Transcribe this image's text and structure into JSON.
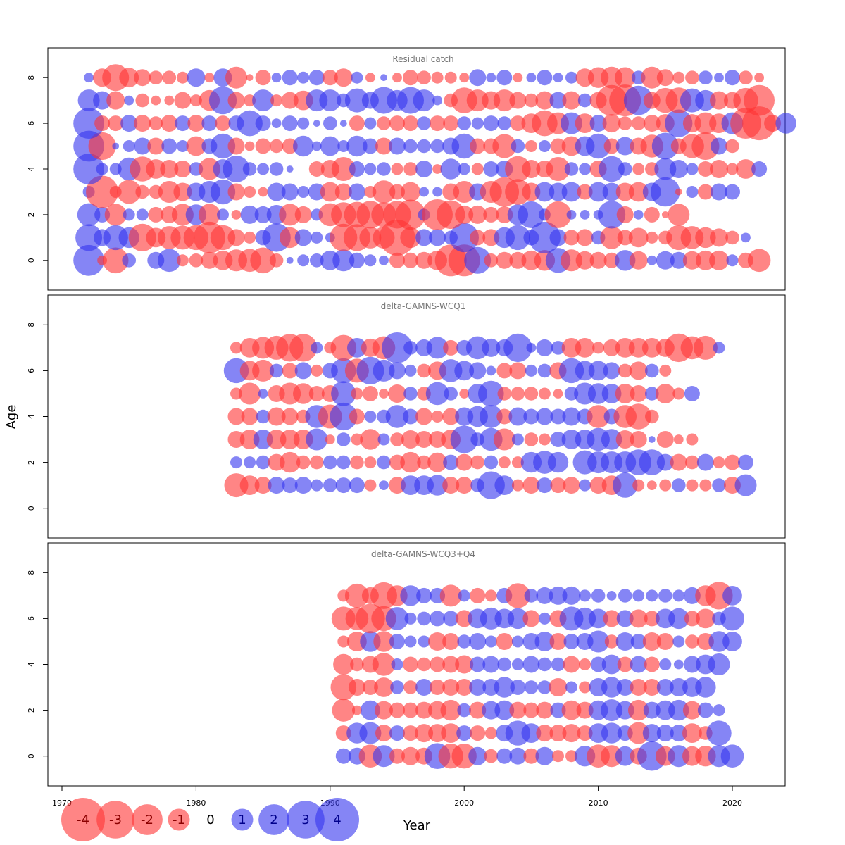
{
  "chart_data": {
    "type": "scatter",
    "xlabel": "Year",
    "ylabel": "Age",
    "xlim": [
      1969,
      2024
    ],
    "ylim": [
      -1.3,
      9.3
    ],
    "x_ticks": [
      1970,
      1980,
      1990,
      2000,
      2010,
      2020
    ],
    "y_ticks": [
      0,
      2,
      4,
      6,
      8
    ],
    "colors": {
      "positive": "#3333ee",
      "negative": "#ff3333"
    },
    "legend": {
      "placement": "bottom-left",
      "values": [
        -4,
        -3,
        -2,
        -1,
        0,
        1,
        2,
        3,
        4
      ],
      "labels": [
        "-4",
        "-3",
        "-2",
        "-1",
        "0",
        "1",
        "2",
        "3",
        "4"
      ]
    },
    "panels": [
      {
        "title": "Residual catch",
        "start_year": 1972,
        "ages": [
          0,
          1,
          2,
          3,
          4,
          5,
          6,
          7,
          8
        ],
        "residuals": [
          [
            2.0,
            -0.2,
            -1.4,
            0.4,
            0.0,
            0.6,
            1.1,
            -0.3,
            -0.4,
            -0.6,
            -0.8,
            -1.0,
            -1.1,
            -1.4,
            -0.4,
            0.1,
            0.3,
            0.4,
            0.8,
            1.0,
            0.5,
            0.3,
            0.2,
            -0.5,
            -0.5,
            -0.6,
            -0.8,
            -2.1,
            -2.1,
            1.5,
            -0.4,
            -0.6,
            -0.6,
            -0.8,
            -0.9,
            1.3,
            -1.0,
            -0.7,
            -0.6,
            -0.5,
            0.9,
            -0.7,
            0.2,
            0.7,
            0.6,
            -0.7,
            -0.8,
            -0.8,
            0.3,
            -0.5,
            -1.1
          ],
          [
            1.5,
            0.6,
            1.3,
            0.9,
            -1.6,
            -0.8,
            -1.1,
            -1.2,
            -1.3,
            -2.1,
            -1.3,
            -0.6,
            -0.3,
            0.5,
            1.7,
            -0.9,
            0.6,
            0.3,
            0.2,
            -1.6,
            -1.5,
            -1.0,
            -1.0,
            -2.7,
            -0.9,
            0.6,
            0.6,
            0.4,
            1.8,
            -0.5,
            -0.6,
            0.9,
            1.3,
            0.5,
            2.1,
            0.6,
            -0.5,
            -0.6,
            0.4,
            -1.1,
            -0.5,
            -0.8,
            -0.3,
            -0.4,
            -1.3,
            -1.1,
            -0.9,
            -0.7,
            -0.4,
            0.2
          ],
          [
            1.1,
            0.5,
            -1.0,
            0.3,
            0.3,
            -0.5,
            -0.6,
            -1.0,
            0.9,
            -1.0,
            0.3,
            -0.2,
            0.7,
            0.6,
            0.8,
            -1.0,
            -0.6,
            0.3,
            -1.1,
            -1.3,
            -1.4,
            -1.6,
            -1.3,
            -1.6,
            -1.9,
            0.3,
            -2.0,
            -1.7,
            -0.7,
            -0.7,
            -0.5,
            -0.6,
            0.9,
            1.5,
            0.3,
            -1.5,
            0.2,
            0.2,
            0.2,
            1.6,
            -0.6,
            0.2,
            -0.5,
            -0.1,
            -1.0
          ],
          [
            0.3,
            -2.2,
            -0.3,
            -1.2,
            -0.4,
            -0.4,
            -1.0,
            -0.7,
            0.7,
            1.0,
            1.3,
            -0.6,
            -0.3,
            -0.2,
            0.7,
            0.6,
            0.3,
            0.6,
            -0.8,
            -0.6,
            0.6,
            -0.3,
            -1.1,
            -0.5,
            -0.8,
            0.2,
            0.2,
            -0.6,
            -1.0,
            0.6,
            -1.0,
            -1.8,
            -1.4,
            -0.7,
            0.8,
            0.7,
            0.8,
            -0.5,
            0.8,
            0.7,
            -0.7,
            -0.8,
            0.7,
            1.8,
            -0.1,
            0.3,
            -0.5,
            0.6,
            0.5
          ],
          [
            2.0,
            0.3,
            0.3,
            1.1,
            -1.3,
            -0.8,
            -0.7,
            -0.6,
            0.4,
            -1.0,
            0.8,
            1.5,
            0.4,
            0.3,
            0.4,
            0.1,
            0.0,
            -0.5,
            -0.7,
            -1.2,
            0.5,
            0.3,
            0.4,
            -0.3,
            -0.4,
            0.6,
            -0.2,
            0.9,
            0.3,
            -0.3,
            0.5,
            0.6,
            -1.4,
            -0.7,
            -0.6,
            -1.2,
            0.4,
            0.3,
            -0.6,
            1.4,
            0.4,
            -0.3,
            -0.4,
            1.0,
            0.7,
            0.3,
            -0.5,
            -0.7,
            -0.3,
            -0.8,
            0.5
          ],
          [
            2.0,
            -1.6,
            0.1,
            0.3,
            0.6,
            -0.6,
            0.5,
            0.3,
            -0.8,
            0.5,
            1.3,
            -0.6,
            -0.2,
            -0.5,
            -0.4,
            -0.5,
            0.9,
            0.2,
            0.8,
            0.3,
            0.9,
            0.5,
            -0.6,
            0.6,
            0.4,
            0.4,
            0.4,
            0.6,
            1.3,
            -0.5,
            -0.5,
            -1.2,
            0.4,
            -0.3,
            0.3,
            -0.5,
            -0.8,
            0.8,
            1.3,
            -0.5,
            0.7,
            -0.6,
            -1.1,
            1.5,
            -0.5,
            -1.2,
            -1.6,
            0.6,
            -0.4
          ],
          [
            2.0,
            -0.5,
            -0.5,
            0.6,
            -0.6,
            -0.4,
            -0.6,
            0.5,
            -0.6,
            0.5,
            -0.5,
            0.5,
            1.4,
            0.5,
            0.2,
            0.5,
            0.3,
            0.1,
            0.4,
            0.1,
            -0.5,
            0.3,
            -0.4,
            -0.5,
            -0.5,
            0.4,
            -0.5,
            -0.5,
            0.4,
            0.3,
            0.5,
            0.4,
            -0.5,
            -0.8,
            -1.4,
            -1.0,
            1.0,
            -0.8,
            0.6,
            -0.7,
            -0.4,
            -0.4,
            -0.6,
            -0.7,
            1.6,
            -0.7,
            -1.0,
            -0.8,
            1.0,
            -2.0,
            -2.4,
            -0.6,
            0.9
          ],
          [
            1.0,
            0.7,
            -0.7,
            0.2,
            -0.4,
            -0.2,
            -0.2,
            -0.6,
            -0.3,
            -0.9,
            1.6,
            -0.6,
            -0.3,
            1.0,
            -0.3,
            -0.6,
            -0.8,
            1.0,
            1.0,
            0.4,
            1.2,
            0.6,
            1.5,
            0.9,
            1.5,
            1.0,
            0.2,
            -0.4,
            -1.4,
            -1.0,
            -0.7,
            -1.0,
            -0.6,
            -0.4,
            -0.7,
            0.6,
            -0.7,
            0.4,
            -0.6,
            -2.0,
            -2.1,
            1.8,
            -0.6,
            -1.3,
            -1.4,
            1.2,
            0.9,
            -0.7,
            -0.6,
            -1.3,
            -2.0
          ],
          [
            0.2,
            -0.7,
            -1.5,
            -0.8,
            -0.6,
            -0.4,
            -0.4,
            -0.3,
            0.7,
            -0.2,
            0.7,
            -1.0,
            -0.1,
            -0.5,
            0.2,
            0.5,
            0.3,
            0.5,
            -0.5,
            -0.7,
            0.3,
            -0.2,
            0.1,
            -0.2,
            -0.5,
            -0.4,
            -0.3,
            -0.3,
            -0.2,
            0.6,
            0.2,
            0.5,
            -0.2,
            0.2,
            0.5,
            0.2,
            0.3,
            -0.7,
            -0.9,
            -1.0,
            -0.9,
            0.4,
            -1.0,
            -0.6,
            -0.3,
            -0.4,
            0.4,
            0.2,
            0.5,
            -0.4,
            -0.2
          ]
        ]
      },
      {
        "title": "delta-GAMNS-WCQ1",
        "start_year": 1983,
        "ages": [
          1,
          2,
          3,
          4,
          5,
          6,
          7
        ],
        "residuals": [
          [
            -1.2,
            -0.8,
            -0.6,
            0.6,
            0.5,
            0.6,
            0.3,
            0.4,
            0.5,
            0.5,
            -0.3,
            0.2,
            -0.6,
            0.8,
            0.8,
            0.9,
            -0.6,
            -0.6,
            0.4,
            1.6,
            0.8,
            -0.3,
            -0.6,
            0.5,
            -0.5,
            -0.6,
            0.3,
            -0.6,
            -0.8,
            1.3,
            -0.3,
            -0.2,
            -0.3,
            0.4,
            -0.3,
            -0.3,
            0.4,
            -0.6,
            1.0
          ],
          [
            0.3,
            0.3,
            0.4,
            -0.6,
            -0.9,
            -0.4,
            -0.4,
            0.4,
            0.4,
            -0.4,
            -0.3,
            0.4,
            -0.5,
            -0.9,
            -0.4,
            -0.8,
            0.5,
            -0.6,
            -0.4,
            0.4,
            -0.3,
            -0.3,
            0.9,
            1.1,
            0.9,
            0.0,
            1.2,
            1.0,
            1.0,
            1.0,
            1.4,
            1.4,
            0.6,
            -0.6,
            -0.4,
            0.6,
            -0.3,
            -0.5,
            0.5
          ],
          [
            -0.6,
            -0.8,
            0.8,
            -0.8,
            -0.8,
            -0.8,
            1.0,
            -0.2,
            0.4,
            -0.3,
            -0.9,
            0.3,
            -0.4,
            -0.7,
            -0.6,
            -0.6,
            -0.8,
            1.6,
            0.4,
            1.1,
            -1.0,
            0.3,
            -0.4,
            -0.3,
            0.5,
            0.8,
            0.8,
            1.1,
            0.9,
            -0.7,
            -0.6,
            0.1,
            -0.6,
            -0.2,
            -0.3
          ],
          [
            -0.6,
            -0.6,
            0.4,
            -0.7,
            -0.6,
            -0.4,
            1.1,
            -1.2,
            1.6,
            -0.5,
            0.3,
            0.4,
            1.1,
            0.5,
            -0.6,
            -0.3,
            -0.6,
            0.7,
            0.9,
            1.1,
            -0.5,
            0.7,
            0.5,
            0.6,
            0.5,
            0.7,
            0.5,
            -1.1,
            0.5,
            -1.1,
            -1.4,
            -0.4
          ],
          [
            -0.3,
            -1.0,
            0.2,
            -0.6,
            -1.0,
            -0.9,
            -0.5,
            -0.6,
            1.3,
            -0.3,
            -0.5,
            -0.2,
            -0.7,
            0.4,
            -0.4,
            1.1,
            0.4,
            -0.2,
            0.8,
            1.4,
            -0.4,
            -0.4,
            -0.4,
            -0.3,
            -0.2,
            0.4,
            1.0,
            0.9,
            0.8,
            -0.8,
            -0.6,
            0.4,
            -0.8,
            -0.3,
            0.5
          ],
          [
            1.3,
            -0.8,
            -1.0,
            0.4,
            -0.5,
            0.6,
            -0.3,
            0.5,
            1.3,
            -1.2,
            1.6,
            1.0,
            0.6,
            0.3,
            -0.4,
            -0.7,
            1.1,
            0.8,
            0.6,
            0.2,
            -0.5,
            -0.6,
            0.3,
            0.4,
            -0.6,
            1.3,
            0.8,
            0.8,
            0.6,
            -0.4,
            -0.7,
            0.4,
            -0.3
          ],
          [
            -0.3,
            -0.8,
            -1.0,
            -1.2,
            -1.6,
            -1.6,
            0.3,
            -0.3,
            -1.4,
            0.8,
            -0.7,
            -1.1,
            2.0,
            0.4,
            0.6,
            1.0,
            -0.5,
            0.5,
            1.1,
            0.7,
            0.6,
            1.7,
            0.2,
            0.6,
            0.4,
            -0.8,
            -0.8,
            -0.3,
            -0.6,
            -0.8,
            -0.8,
            -0.8,
            -0.7,
            -1.7,
            -1.1,
            -1.2,
            0.3
          ]
        ]
      },
      {
        "title": "delta-GAMNS-WCQ3+Q4",
        "start_year": 1991,
        "ages": [
          0,
          1,
          2,
          3,
          4,
          5,
          6,
          7
        ],
        "residuals": [
          [
            0.5,
            0.6,
            -1.1,
            1.0,
            -0.5,
            -0.7,
            -0.6,
            1.4,
            -1.3,
            -1.3,
            0.7,
            -0.4,
            0.5,
            0.6,
            -0.5,
            0.7,
            -0.3,
            -0.3,
            0.9,
            -1.1,
            -1.0,
            0.8,
            -0.6,
            1.8,
            -0.8,
            1.0,
            -0.8,
            -0.9,
            1.0,
            1.1
          ],
          [
            -0.5,
            0.9,
            1.0,
            -0.6,
            0.5,
            -0.5,
            -0.7,
            -0.7,
            -0.8,
            0.5,
            -0.5,
            -0.3,
            0.6,
            1.3,
            0.8,
            -0.6,
            -0.6,
            -0.7,
            -0.5,
            0.8,
            0.9,
            0.5,
            -1.0,
            0.7,
            0.6,
            0.6,
            -0.8,
            -0.4,
            1.3
          ],
          [
            -1.1,
            -0.2,
            0.8,
            -0.7,
            -0.5,
            -0.5,
            -0.6,
            -0.7,
            -0.9,
            0.4,
            -0.6,
            0.7,
            0.8,
            -0.6,
            -0.5,
            -0.6,
            0.5,
            -0.8,
            -0.6,
            0.8,
            1.0,
            0.7,
            -0.9,
            0.6,
            0.8,
            0.9,
            -0.7,
            0.5,
            0.3
          ],
          [
            -1.4,
            -0.6,
            -0.5,
            -0.8,
            0.4,
            -0.4,
            0.6,
            -0.5,
            -0.6,
            -0.6,
            0.6,
            0.6,
            0.9,
            0.5,
            0.4,
            0.4,
            -0.7,
            0.3,
            -0.3,
            0.7,
            0.9,
            0.6,
            -0.6,
            -0.6,
            0.6,
            0.7,
            0.8,
            0.9
          ],
          [
            -0.9,
            -0.4,
            -0.6,
            -1.1,
            0.3,
            -0.5,
            -0.4,
            -0.5,
            -0.6,
            -0.7,
            0.5,
            0.6,
            0.4,
            0.3,
            0.6,
            0.4,
            0.4,
            -0.6,
            -0.3,
            0.5,
            0.8,
            -0.5,
            0.6,
            -0.5,
            0.3,
            0.2,
            0.6,
            0.8,
            1.0
          ],
          [
            -0.3,
            -0.8,
            0.9,
            -0.9,
            0.5,
            0.3,
            0.3,
            -0.7,
            -0.6,
            0.4,
            0.6,
            0.3,
            -0.6,
            0.3,
            0.6,
            0.8,
            -0.6,
            0.5,
            0.6,
            1.0,
            -0.4,
            0.7,
            0.5,
            -0.7,
            -0.6,
            0.3,
            -0.4,
            -0.6,
            0.9,
            0.8
          ],
          [
            -1.2,
            -1.1,
            -1.8,
            -1.3,
            1.1,
            0.3,
            0.4,
            0.5,
            0.5,
            -0.6,
            0.8,
            1.0,
            0.8,
            0.9,
            -0.6,
            0.3,
            -0.6,
            1.2,
            1.0,
            0.8,
            -0.6,
            0.6,
            -0.7,
            -0.5,
            0.8,
            0.9,
            -0.5,
            -0.8,
            0.4,
            1.2
          ],
          [
            -0.3,
            -1.2,
            -0.6,
            -1.5,
            -0.9,
            0.9,
            0.5,
            0.5,
            -1.0,
            0.3,
            -0.5,
            -0.3,
            0.5,
            -1.3,
            0.4,
            0.6,
            0.7,
            0.7,
            0.3,
            0.4,
            0.2,
            0.4,
            0.3,
            0.3,
            0.4,
            0.3,
            0.6,
            -0.9,
            -1.6,
            0.8
          ]
        ]
      }
    ]
  }
}
